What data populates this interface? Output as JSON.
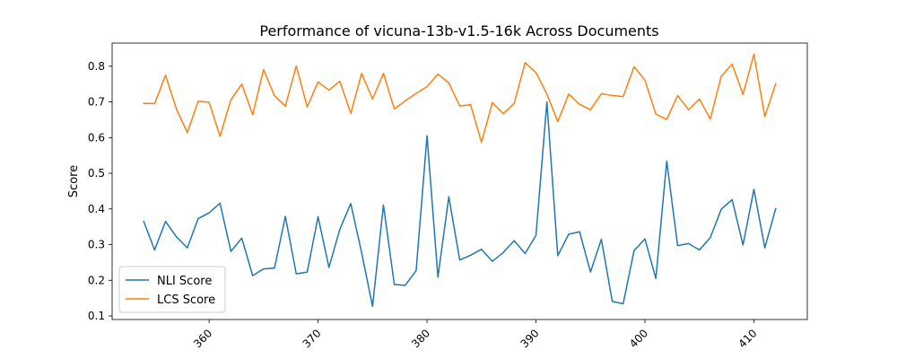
{
  "chart_data": {
    "type": "line",
    "title": "Performance of vicuna-13b-v1.5-16k Across Documents",
    "xlabel": "",
    "ylabel": "Score",
    "xlim": [
      351.1,
      414.9
    ],
    "ylim": [
      0.09,
      0.865
    ],
    "x_ticks": [
      360,
      370,
      380,
      390,
      400,
      410
    ],
    "y_ticks": [
      0.1,
      0.2,
      0.3,
      0.4,
      0.5,
      0.6,
      0.7,
      0.8
    ],
    "x_tick_rotation": 45,
    "grid": false,
    "legend_position": "lower-left",
    "x": [
      354,
      355,
      356,
      357,
      358,
      359,
      360,
      361,
      362,
      363,
      364,
      365,
      366,
      367,
      368,
      369,
      370,
      371,
      372,
      373,
      374,
      375,
      376,
      377,
      378,
      379,
      380,
      381,
      382,
      383,
      384,
      385,
      386,
      387,
      388,
      389,
      390,
      391,
      392,
      393,
      394,
      395,
      396,
      397,
      398,
      399,
      400,
      401,
      402,
      403,
      404,
      405,
      406,
      407,
      408,
      409,
      410,
      411,
      412
    ],
    "series": [
      {
        "name": "NLI Score",
        "color": "#1f77b4",
        "values": [
          0.365,
          0.285,
          0.365,
          0.322,
          0.291,
          0.373,
          0.389,
          0.416,
          0.281,
          0.318,
          0.213,
          0.232,
          0.234,
          0.379,
          0.218,
          0.223,
          0.378,
          0.236,
          0.343,
          0.415,
          0.277,
          0.127,
          0.411,
          0.188,
          0.186,
          0.227,
          0.605,
          0.209,
          0.434,
          0.257,
          0.27,
          0.287,
          0.253,
          0.278,
          0.311,
          0.275,
          0.326,
          0.7,
          0.269,
          0.329,
          0.336,
          0.223,
          0.315,
          0.141,
          0.134,
          0.283,
          0.316,
          0.205,
          0.534,
          0.297,
          0.303,
          0.285,
          0.32,
          0.399,
          0.426,
          0.299,
          0.455,
          0.291,
          0.401
        ]
      },
      {
        "name": "LCS Score",
        "color": "#ff7f0e",
        "values": [
          0.696,
          0.695,
          0.775,
          0.68,
          0.614,
          0.702,
          0.699,
          0.604,
          0.706,
          0.75,
          0.664,
          0.791,
          0.717,
          0.688,
          0.801,
          0.686,
          0.756,
          0.733,
          0.758,
          0.668,
          0.78,
          0.708,
          0.78,
          0.68,
          0.703,
          0.724,
          0.743,
          0.778,
          0.753,
          0.689,
          0.692,
          0.587,
          0.698,
          0.667,
          0.696,
          0.81,
          0.782,
          0.722,
          0.645,
          0.722,
          0.693,
          0.678,
          0.723,
          0.718,
          0.715,
          0.799,
          0.761,
          0.666,
          0.651,
          0.718,
          0.678,
          0.708,
          0.652,
          0.772,
          0.806,
          0.721,
          0.834,
          0.659,
          0.751
        ]
      }
    ]
  }
}
